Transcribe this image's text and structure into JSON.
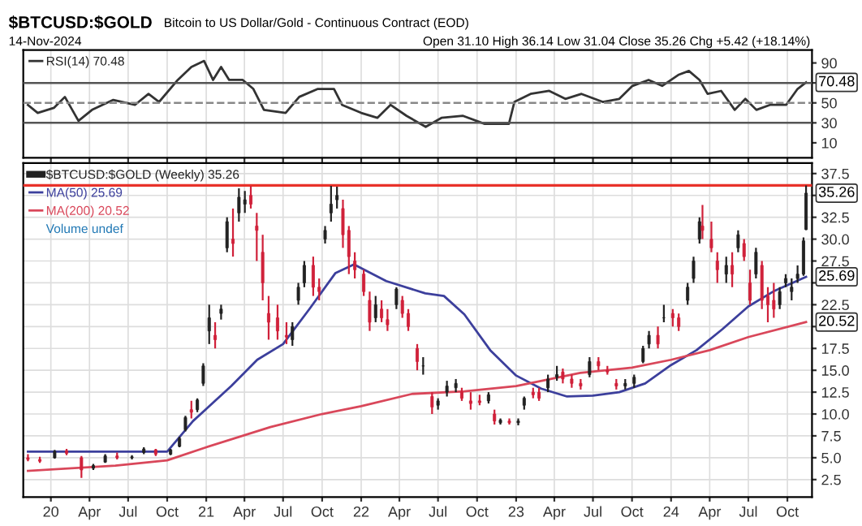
{
  "chart_data": [
    {
      "type": "line",
      "title": "$BTCUSD:$GOLD",
      "subtitle": "Bitcoin to US Dollar/Gold - Continuous Contract (EOD)",
      "annotations": [
        "14-Nov-2024",
        "Open 31.10 High 36.14 Low 31.04 Close 35.26 Chg +5.42 (+18.14%)",
        {
          "text": "70.48",
          "x": "2024-11-14",
          "y": 70.48
        }
      ],
      "series": [
        {
          "name": "RSI(14) 70.48",
          "color": "#333333",
          "x": [
            "2019-11-08",
            "2019-12-01",
            "2020-01-08",
            "2020-02-03",
            "2020-03-06",
            "2020-04-07",
            "2020-05-27",
            "2020-07-17",
            "2020-08-18",
            "2020-09-12",
            "2020-10-26",
            "2020-11-27",
            "2020-12-27",
            "2021-01-17",
            "2021-02-05",
            "2021-02-24",
            "2021-03-28",
            "2021-04-22",
            "2021-05-17",
            "2021-07-07",
            "2021-08-08",
            "2021-09-21",
            "2021-10-29",
            "2021-11-17",
            "2022-01-01",
            "2022-02-08",
            "2022-03-11",
            "2022-04-18",
            "2022-06-02",
            "2022-07-09",
            "2022-08-29",
            "2022-10-19",
            "2022-12-15",
            "2022-12-28",
            "2023-02-04",
            "2023-03-20",
            "2023-04-27",
            "2023-06-04",
            "2023-07-24",
            "2023-09-01",
            "2023-10-02",
            "2023-11-09",
            "2023-12-11",
            "2024-01-18",
            "2024-02-12",
            "2024-03-08",
            "2024-03-27",
            "2024-04-28",
            "2024-05-30",
            "2024-06-24",
            "2024-07-20",
            "2024-08-21",
            "2024-09-28",
            "2024-10-25",
            "2024-11-14"
          ],
          "values": [
            48,
            40,
            45,
            56,
            32,
            43,
            53,
            48,
            59,
            51,
            73,
            86,
            92,
            73,
            86,
            73,
            73,
            64,
            43,
            40,
            56,
            64,
            64,
            48,
            40,
            35,
            48,
            37,
            26,
            35,
            37,
            29,
            29,
            51,
            59,
            62,
            54,
            59,
            51,
            54,
            67,
            73,
            67,
            78,
            82,
            73,
            59,
            62,
            43,
            54,
            43,
            48,
            48,
            64,
            70.48
          ]
        }
      ],
      "xlim": [
        "2019-10-28",
        "2024-11-28"
      ],
      "ylim": [
        -5,
        103
      ],
      "xticks": [
        {
          "value": "2020-01-01",
          "label": null
        },
        {
          "value": "2020-04-01",
          "label": null
        },
        {
          "value": "2020-07-01",
          "label": null
        },
        {
          "value": "2020-10-01",
          "label": null
        },
        {
          "value": "2021-01-01",
          "label": null
        },
        {
          "value": "2021-04-01",
          "label": null
        },
        {
          "value": "2021-07-01",
          "label": null
        },
        {
          "value": "2021-10-01",
          "label": null
        },
        {
          "value": "2022-01-01",
          "label": null
        },
        {
          "value": "2022-04-01",
          "label": null
        },
        {
          "value": "2022-07-01",
          "label": null
        },
        {
          "value": "2022-10-01",
          "label": null
        },
        {
          "value": "2023-01-01",
          "label": null
        },
        {
          "value": "2023-04-01",
          "label": null
        },
        {
          "value": "2023-07-01",
          "label": null
        },
        {
          "value": "2023-10-01",
          "label": null
        },
        {
          "value": "2024-01-01",
          "label": null
        },
        {
          "value": "2024-04-01",
          "label": null
        },
        {
          "value": "2024-07-01",
          "label": null
        },
        {
          "value": "2024-10-01",
          "label": null
        }
      ],
      "yticks": [
        10,
        30,
        50,
        {
          "value": 70,
          "label": null
        },
        90
      ],
      "ref_lines": [
        {
          "axis": "y",
          "value": 70,
          "color": "#555555",
          "line_style": "solid"
        },
        {
          "axis": "y",
          "value": 50,
          "color": "#888888",
          "line_style": "dashed"
        },
        {
          "axis": "y",
          "value": 30,
          "color": "#555555",
          "line_style": "solid"
        }
      ],
      "grid": "x",
      "legend": "top left",
      "tick_labels": "y"
    },
    {
      "type": "candlestick",
      "annotations": [
        "Volume undef",
        {
          "text": "35.26",
          "x": "2024-11-14",
          "y": 35.26
        },
        {
          "text": "25.69",
          "x": "2024-11-14",
          "y": 25.69
        },
        {
          "text": "20.52",
          "x": "2024-11-14",
          "y": 20.52
        }
      ],
      "series": [
        {
          "type": "candlestick",
          "name": "$BTCUSD:$GOLD (Weekly) 35.26",
          "color": "#222222",
          "colors": [
            "#d0213a",
            "#d0213a",
            "#222222",
            "#d0213a",
            "#d0213a",
            "#222222",
            "#222222",
            "#d0213a",
            "#222222",
            "#222222",
            "#d0213a",
            "#222222",
            "#222222",
            "#222222",
            "#d0213a",
            "#222222",
            "#222222",
            "#222222",
            "#d0213a",
            "#222222",
            "#222222",
            "#d0213a",
            "#222222",
            "#222222",
            "#d0213a",
            "#d0213a",
            "#d0213a",
            "#d0213a",
            "#d0213a",
            "#d0213a",
            "#222222",
            "#222222",
            "#222222",
            "#d0213a",
            "#d0213a",
            "#222222",
            "#222222",
            "#222222",
            "#d0213a",
            "#d0213a",
            "#d0213a",
            "#d0213a",
            "#d0213a",
            "#222222",
            "#d0213a",
            "#d0213a",
            "#222222",
            "#d0213a",
            "#d0213a",
            "#d0213a",
            "#222222",
            "#d0213a",
            "#222222",
            "#222222",
            "#222222",
            "#d0213a",
            "#d0213a",
            "#d0213a",
            "#222222",
            "#d0213a",
            "#222222",
            "#d0213a",
            "#222222",
            "#222222",
            "#d0213a",
            "#d0213a",
            "#222222",
            "#222222",
            "#d0213a",
            "#d0213a",
            "#d0213a",
            "#222222",
            "#d0213a",
            "#d0213a",
            "#d0213a",
            "#222222",
            "#222222",
            "#222222",
            "#222222",
            "#d0213a",
            "#222222",
            "#d0213a",
            "#d0213a",
            "#222222",
            "#222222",
            "#222222",
            "#d0213a",
            "#d0213a",
            "#d0213a",
            "#222222",
            "#d0213a",
            "#222222",
            "#d0213a",
            "#d0213a",
            "#222222",
            "#d0213a",
            "#d0213a",
            "#d0213a",
            "#222222",
            "#222222",
            "#222222",
            "#222222",
            "#222222",
            "#222222"
          ],
          "x": [
            "2019-11-08",
            "2019-12-06",
            "2020-01-10",
            "2020-02-07",
            "2020-03-13",
            "2020-04-10",
            "2020-05-08",
            "2020-06-05",
            "2020-07-10",
            "2020-08-07",
            "2020-09-04",
            "2020-10-09",
            "2020-10-30",
            "2020-11-13",
            "2020-11-27",
            "2020-12-11",
            "2020-12-25",
            "2021-01-08",
            "2021-01-22",
            "2021-02-05",
            "2021-02-19",
            "2021-03-05",
            "2021-03-19",
            "2021-04-02",
            "2021-04-16",
            "2021-04-30",
            "2021-05-14",
            "2021-05-28",
            "2021-06-18",
            "2021-07-09",
            "2021-07-23",
            "2021-08-06",
            "2021-08-20",
            "2021-09-10",
            "2021-09-24",
            "2021-10-08",
            "2021-10-22",
            "2021-11-05",
            "2021-11-19",
            "2021-12-03",
            "2021-12-17",
            "2022-01-07",
            "2022-01-21",
            "2022-02-04",
            "2022-02-18",
            "2022-03-04",
            "2022-03-25",
            "2022-04-08",
            "2022-04-22",
            "2022-05-13",
            "2022-05-27",
            "2022-06-17",
            "2022-07-01",
            "2022-07-22",
            "2022-08-12",
            "2022-08-26",
            "2022-09-16",
            "2022-10-07",
            "2022-10-28",
            "2022-11-11",
            "2022-11-25",
            "2022-12-16",
            "2023-01-06",
            "2023-01-20",
            "2023-02-10",
            "2023-02-24",
            "2023-03-17",
            "2023-04-07",
            "2023-04-21",
            "2023-05-12",
            "2023-06-02",
            "2023-06-23",
            "2023-07-14",
            "2023-08-04",
            "2023-08-25",
            "2023-09-15",
            "2023-10-06",
            "2023-10-27",
            "2023-11-10",
            "2023-12-01",
            "2023-12-15",
            "2024-01-05",
            "2024-01-19",
            "2024-02-09",
            "2024-02-23",
            "2024-03-08",
            "2024-03-15",
            "2024-04-05",
            "2024-04-19",
            "2024-05-10",
            "2024-05-24",
            "2024-06-07",
            "2024-06-21",
            "2024-07-05",
            "2024-07-19",
            "2024-08-02",
            "2024-08-16",
            "2024-08-30",
            "2024-09-13",
            "2024-09-27",
            "2024-10-11",
            "2024-10-25",
            "2024-11-08",
            "2024-11-14"
          ],
          "ohlc": [
            [
              5.0,
              5.4,
              4.6,
              4.8
            ],
            [
              4.8,
              5.1,
              4.4,
              4.6
            ],
            [
              5.0,
              5.9,
              4.9,
              5.7
            ],
            [
              5.8,
              6.0,
              5.3,
              5.5
            ],
            [
              5.0,
              5.2,
              2.7,
              3.6
            ],
            [
              3.8,
              4.3,
              3.6,
              4.1
            ],
            [
              4.5,
              5.4,
              4.4,
              5.2
            ],
            [
              5.2,
              5.6,
              4.8,
              5.0
            ],
            [
              5.0,
              5.3,
              4.8,
              5.1
            ],
            [
              5.6,
              6.2,
              5.4,
              6.0
            ],
            [
              5.9,
              6.0,
              5.2,
              5.4
            ],
            [
              5.4,
              6.0,
              5.3,
              5.9
            ],
            [
              6.3,
              7.4,
              6.2,
              7.2
            ],
            [
              8.2,
              9.8,
              8.0,
              9.6
            ],
            [
              10.5,
              11.5,
              9.5,
              10.2
            ],
            [
              10.5,
              11.8,
              10.2,
              11.6
            ],
            [
              13.5,
              15.8,
              13.2,
              15.5
            ],
            [
              19.5,
              22.5,
              18.0,
              21.0
            ],
            [
              19.0,
              20.5,
              17.5,
              18.5
            ],
            [
              21.5,
              22.5,
              20.8,
              22.0
            ],
            [
              29.0,
              32.5,
              28.5,
              32.0
            ],
            [
              30.0,
              33.5,
              28.0,
              29.5
            ],
            [
              33.0,
              35.8,
              32.0,
              34.8
            ],
            [
              34.0,
              35.5,
              33.0,
              34.5
            ],
            [
              35.0,
              36.1,
              33.5,
              34.0
            ],
            [
              31.5,
              33.0,
              27.5,
              31.0
            ],
            [
              28.5,
              30.5,
              23.0,
              25.0
            ],
            [
              21.5,
              23.5,
              18.5,
              20.5
            ],
            [
              21.0,
              22.5,
              18.5,
              19.5
            ],
            [
              19.0,
              20.5,
              18.0,
              18.8
            ],
            [
              18.5,
              20.5,
              17.8,
              20.0
            ],
            [
              23.0,
              25.0,
              22.5,
              24.5
            ],
            [
              25.0,
              27.5,
              24.5,
              27.0
            ],
            [
              27.0,
              28.0,
              23.5,
              24.5
            ],
            [
              24.5,
              25.5,
              23.0,
              24.0
            ],
            [
              30.0,
              31.5,
              29.5,
              31.0
            ],
            [
              33.0,
              36.1,
              32.0,
              34.0
            ],
            [
              34.5,
              36.0,
              33.5,
              35.0
            ],
            [
              33.5,
              34.5,
              29.0,
              30.5
            ],
            [
              31.0,
              31.5,
              26.0,
              28.0
            ],
            [
              27.5,
              28.5,
              25.5,
              26.5
            ],
            [
              26.0,
              26.5,
              23.5,
              24.0
            ],
            [
              23.0,
              24.0,
              19.5,
              20.5
            ],
            [
              21.0,
              23.5,
              20.5,
              22.5
            ],
            [
              22.0,
              23.0,
              20.5,
              21.0
            ],
            [
              20.8,
              22.0,
              19.5,
              20.2
            ],
            [
              22.5,
              24.5,
              22.0,
              24.3
            ],
            [
              23.0,
              23.5,
              21.0,
              21.5
            ],
            [
              21.5,
              22.0,
              19.5,
              20.0
            ],
            [
              17.5,
              18.0,
              15.0,
              16.0
            ],
            [
              15.5,
              16.5,
              14.5,
              15.5
            ],
            [
              12.0,
              12.5,
              10.0,
              10.8
            ],
            [
              11.0,
              11.8,
              10.5,
              11.5
            ],
            [
              12.5,
              13.8,
              12.0,
              13.2
            ],
            [
              13.0,
              14.0,
              12.5,
              13.5
            ],
            [
              12.5,
              13.0,
              11.5,
              11.8
            ],
            [
              11.5,
              12.5,
              10.5,
              11.2
            ],
            [
              11.5,
              12.2,
              11.0,
              11.3
            ],
            [
              11.5,
              12.5,
              11.2,
              12.2
            ],
            [
              10.0,
              10.5,
              8.8,
              9.2
            ],
            [
              9.0,
              9.5,
              8.8,
              9.3
            ],
            [
              9.2,
              9.5,
              8.8,
              9.0
            ],
            [
              9.0,
              9.5,
              8.7,
              9.2
            ],
            [
              11.0,
              12.0,
              10.5,
              11.8
            ],
            [
              12.5,
              13.0,
              11.8,
              12.2
            ],
            [
              12.5,
              13.0,
              11.5,
              11.8
            ],
            [
              13.0,
              14.5,
              12.5,
              14.0
            ],
            [
              14.2,
              15.5,
              13.8,
              14.5
            ],
            [
              14.8,
              15.2,
              13.5,
              14.0
            ],
            [
              14.0,
              14.5,
              13.0,
              13.5
            ],
            [
              13.5,
              14.0,
              12.8,
              13.2
            ],
            [
              14.5,
              16.5,
              14.2,
              16.0
            ],
            [
              16.0,
              16.5,
              15.0,
              15.5
            ],
            [
              15.0,
              15.5,
              14.5,
              14.8
            ],
            [
              13.5,
              14.0,
              12.8,
              13.2
            ],
            [
              13.2,
              14.0,
              12.8,
              13.5
            ],
            [
              13.5,
              14.5,
              13.0,
              14.2
            ],
            [
              16.0,
              17.8,
              15.8,
              17.5
            ],
            [
              18.0,
              19.5,
              17.5,
              19.0
            ],
            [
              19.0,
              20.0,
              17.5,
              18.0
            ],
            [
              21.0,
              22.5,
              20.5,
              21.0
            ],
            [
              21.5,
              22.0,
              20.0,
              21.0
            ],
            [
              21.0,
              21.5,
              19.5,
              20.0
            ],
            [
              23.0,
              25.0,
              22.5,
              24.5
            ],
            [
              25.5,
              28.0,
              25.0,
              27.5
            ],
            [
              30.0,
              32.5,
              29.5,
              32.0
            ],
            [
              31.5,
              33.9,
              30.0,
              31.0
            ],
            [
              30.0,
              32.0,
              28.5,
              29.0
            ],
            [
              27.5,
              28.5,
              25.0,
              26.5
            ],
            [
              26.0,
              28.0,
              25.0,
              27.0
            ],
            [
              27.0,
              28.5,
              24.5,
              26.0
            ],
            [
              29.0,
              31.0,
              28.5,
              30.5
            ],
            [
              29.5,
              30.0,
              27.5,
              28.0
            ],
            [
              25.0,
              26.5,
              22.5,
              23.0
            ],
            [
              26.0,
              29.0,
              25.5,
              28.5
            ],
            [
              27.0,
              27.5,
              22.0,
              23.0
            ],
            [
              23.5,
              24.5,
              20.5,
              22.5
            ],
            [
              23.0,
              25.0,
              21.0,
              22.0
            ],
            [
              22.5,
              24.5,
              22.0,
              24.0
            ],
            [
              25.0,
              26.0,
              24.5,
              25.5
            ],
            [
              24.0,
              25.5,
              23.0,
              24.5
            ],
            [
              25.5,
              27.0,
              25.0,
              26.0
            ],
            [
              26.0,
              30.2,
              25.8,
              29.8
            ],
            [
              31.1,
              36.14,
              31.04,
              35.26
            ]
          ]
        },
        {
          "type": "line",
          "name": "MA(50) 25.69",
          "color": "#3c3f9c",
          "x": [
            "2019-11-08",
            "2020-10-01",
            "2020-12-01",
            "2021-03-01",
            "2021-05-01",
            "2021-07-01",
            "2021-09-01",
            "2021-11-01",
            "2021-12-15",
            "2022-03-01",
            "2022-06-01",
            "2022-07-15",
            "2022-09-01",
            "2022-11-01",
            "2023-01-01",
            "2023-03-01",
            "2023-05-01",
            "2023-07-01",
            "2023-09-01",
            "2023-11-01",
            "2024-01-01",
            "2024-03-01",
            "2024-05-01",
            "2024-07-01",
            "2024-09-01",
            "2024-11-14"
          ],
          "values": [
            5.7,
            5.7,
            9.2,
            13.2,
            16.2,
            18.0,
            22.0,
            26.1,
            27.1,
            25.2,
            23.8,
            23.5,
            21.4,
            17.3,
            14.4,
            12.9,
            12.0,
            12.1,
            12.5,
            13.5,
            15.6,
            17.3,
            19.7,
            22.3,
            24.1,
            25.69
          ]
        },
        {
          "type": "line",
          "name": "MA(200) 20.52",
          "color": "#d9475a",
          "x": [
            "2019-11-08",
            "2020-06-01",
            "2020-10-01",
            "2021-01-01",
            "2021-06-01",
            "2021-10-01",
            "2022-01-01",
            "2022-05-01",
            "2022-09-01",
            "2023-01-01",
            "2023-06-01",
            "2023-10-01",
            "2024-01-01",
            "2024-04-01",
            "2024-07-01",
            "2024-11-14"
          ],
          "values": [
            3.5,
            4.1,
            4.7,
            6.2,
            8.5,
            10.0,
            10.9,
            12.3,
            12.6,
            13.2,
            14.7,
            15.3,
            16.2,
            17.3,
            18.8,
            20.52
          ]
        }
      ],
      "xlim": [
        "2019-10-28",
        "2024-11-28"
      ],
      "ylim": [
        0.5,
        38.7
      ],
      "xticks": [
        {
          "value": "2020-01-01",
          "label": "20"
        },
        {
          "value": "2020-04-01",
          "label": "Apr"
        },
        {
          "value": "2020-07-01",
          "label": "Jul"
        },
        {
          "value": "2020-10-01",
          "label": "Oct"
        },
        {
          "value": "2021-01-01",
          "label": "21"
        },
        {
          "value": "2021-04-01",
          "label": "Apr"
        },
        {
          "value": "2021-07-01",
          "label": "Jul"
        },
        {
          "value": "2021-10-01",
          "label": "Oct"
        },
        {
          "value": "2022-01-01",
          "label": "22"
        },
        {
          "value": "2022-04-01",
          "label": "Apr"
        },
        {
          "value": "2022-07-01",
          "label": "Jul"
        },
        {
          "value": "2022-10-01",
          "label": "Oct"
        },
        {
          "value": "2023-01-01",
          "label": "23"
        },
        {
          "value": "2023-04-01",
          "label": "Apr"
        },
        {
          "value": "2023-07-01",
          "label": "Jul"
        },
        {
          "value": "2023-10-01",
          "label": "Oct"
        },
        {
          "value": "2024-01-01",
          "label": "24"
        },
        {
          "value": "2024-04-01",
          "label": "Apr"
        },
        {
          "value": "2024-07-01",
          "label": "Jul"
        },
        {
          "value": "2024-10-01",
          "label": "Oct"
        }
      ],
      "yticks": [
        {
          "value": 2.5,
          "label": "2.5"
        },
        {
          "value": 5,
          "label": "5.0"
        },
        {
          "value": 7.5,
          "label": "7.5"
        },
        {
          "value": 10,
          "label": "10.0"
        },
        {
          "value": 12.5,
          "label": "12.5"
        },
        {
          "value": 15,
          "label": "15.0"
        },
        {
          "value": 17.5,
          "label": "17.5"
        },
        {
          "value": 20,
          "label": null
        },
        {
          "value": 22.5,
          "label": "22.5"
        },
        {
          "value": 25,
          "label": null
        },
        {
          "value": 27.5,
          "label": "27.5"
        },
        {
          "value": 30,
          "label": "30.0"
        },
        {
          "value": 32.5,
          "label": "32.5"
        },
        {
          "value": 35,
          "label": null
        },
        {
          "value": 37.5,
          "label": "37.5"
        }
      ],
      "ref_lines": [
        {
          "axis": "y",
          "value": 36.14,
          "color": "#e8322a",
          "line_style": "solid"
        }
      ],
      "grid": true,
      "legend": "top left"
    }
  ]
}
